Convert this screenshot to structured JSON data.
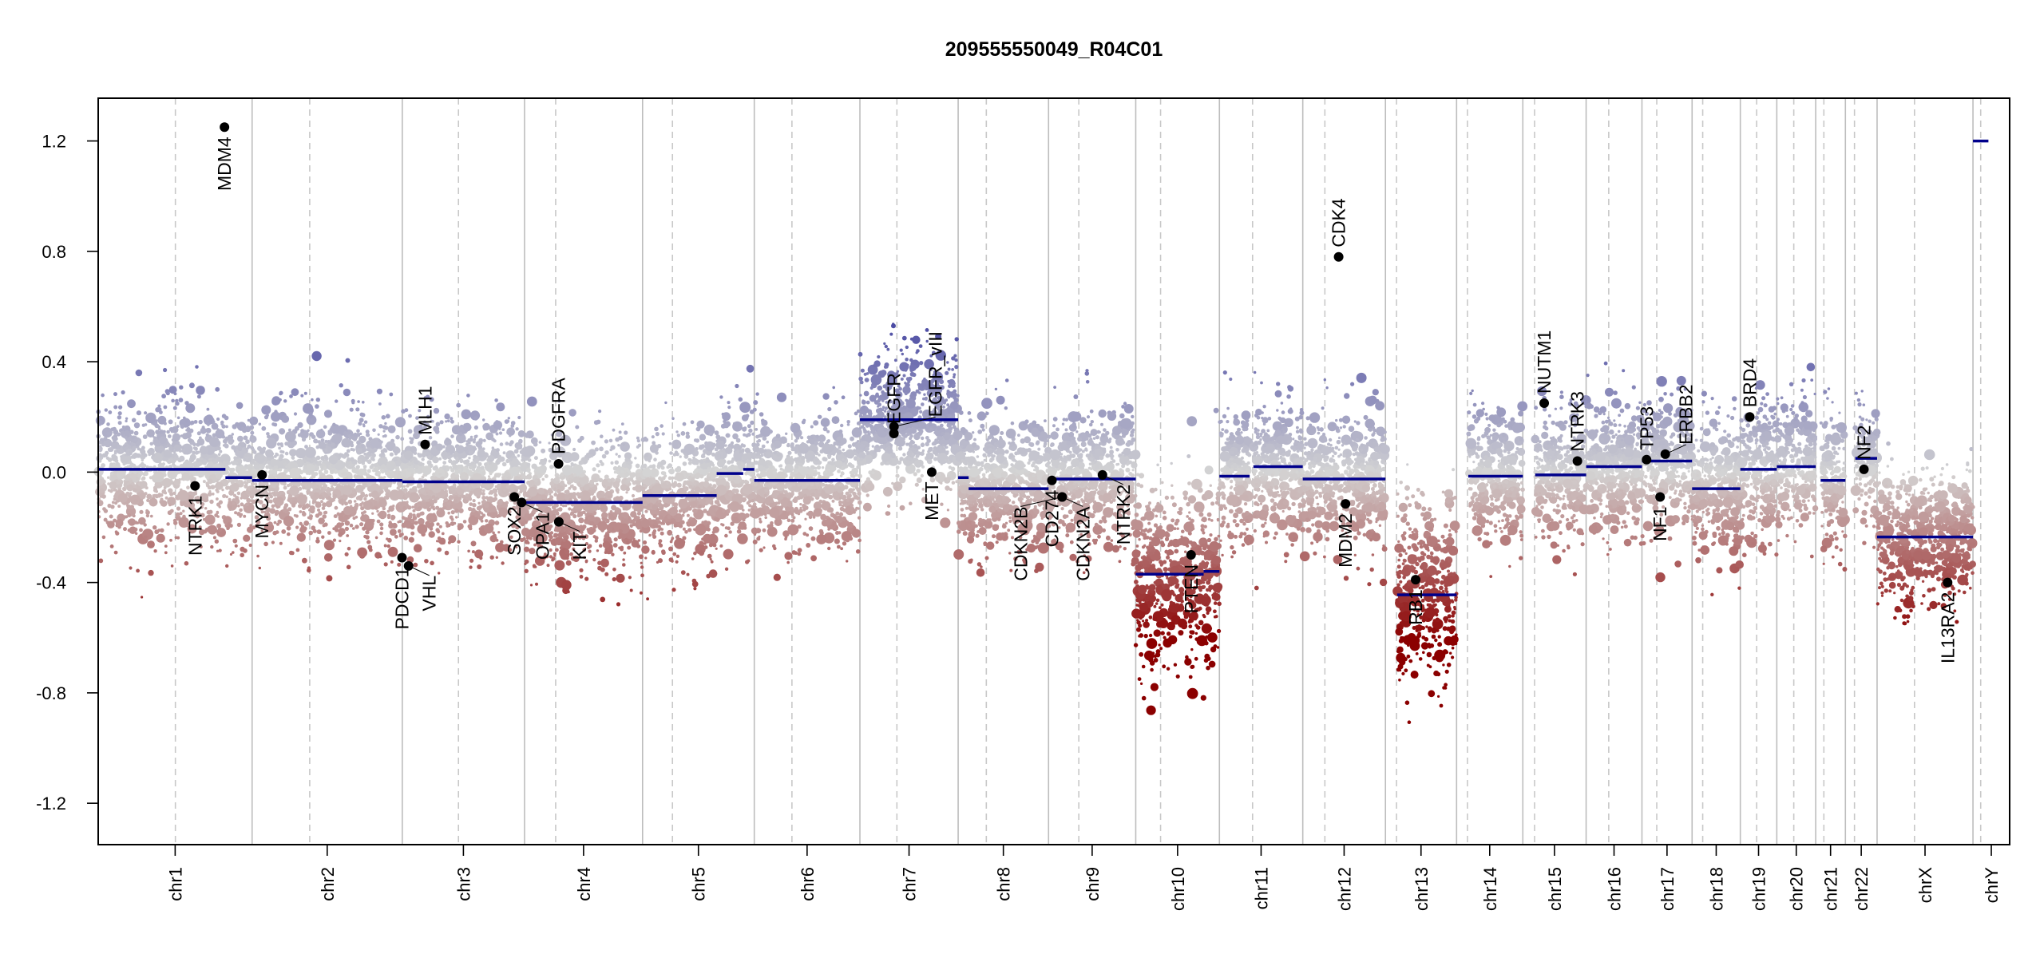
{
  "chart_data": {
    "type": "scatter",
    "title": "209555550049_R04C01",
    "xlabel": "",
    "ylabel": "",
    "ylim": [
      -1.35,
      1.355
    ],
    "y_ticks": [
      "1.2",
      "0.8",
      "0.4",
      "0.0",
      "-0.4",
      "-0.8",
      "-1.2"
    ],
    "y_tick_values": [
      1.2,
      0.8,
      0.4,
      0.0,
      -0.4,
      -0.8,
      -1.2
    ],
    "grid": false,
    "colors": {
      "gain": "#3a3a9e",
      "neutral": "#d4d4d4",
      "loss": "#8b0000",
      "segment": "#00008b",
      "gene": "#000000"
    },
    "chromosomes": [
      {
        "name": "chr1",
        "length_mb": 249.25,
        "centromere_mb": 125.0
      },
      {
        "name": "chr2",
        "length_mb": 243.2,
        "centromere_mb": 93.3
      },
      {
        "name": "chr3",
        "length_mb": 198.0,
        "centromere_mb": 91.0
      },
      {
        "name": "chr4",
        "length_mb": 191.15,
        "centromere_mb": 50.4
      },
      {
        "name": "chr5",
        "length_mb": 180.9,
        "centromere_mb": 48.4
      },
      {
        "name": "chr6",
        "length_mb": 171.1,
        "centromere_mb": 61.0
      },
      {
        "name": "chr7",
        "length_mb": 159.1,
        "centromere_mb": 59.9
      },
      {
        "name": "chr8",
        "length_mb": 146.4,
        "centromere_mb": 45.6
      },
      {
        "name": "chr9",
        "length_mb": 141.2,
        "centromere_mb": 49.0
      },
      {
        "name": "chr10",
        "length_mb": 135.5,
        "centromere_mb": 40.2
      },
      {
        "name": "chr11",
        "length_mb": 135.0,
        "centromere_mb": 53.7
      },
      {
        "name": "chr12",
        "length_mb": 133.9,
        "centromere_mb": 35.8
      },
      {
        "name": "chr13",
        "length_mb": 115.2,
        "centromere_mb": 17.9
      },
      {
        "name": "chr14",
        "length_mb": 107.3,
        "centromere_mb": 17.6
      },
      {
        "name": "chr15",
        "length_mb": 102.5,
        "centromere_mb": 19.0
      },
      {
        "name": "chr16",
        "length_mb": 90.4,
        "centromere_mb": 36.6
      },
      {
        "name": "chr17",
        "length_mb": 81.2,
        "centromere_mb": 24.0
      },
      {
        "name": "chr18",
        "length_mb": 78.1,
        "centromere_mb": 17.2
      },
      {
        "name": "chr19",
        "length_mb": 59.1,
        "centromere_mb": 26.5
      },
      {
        "name": "chr20",
        "length_mb": 63.0,
        "centromere_mb": 27.5
      },
      {
        "name": "chr21",
        "length_mb": 48.1,
        "centromere_mb": 13.2
      },
      {
        "name": "chr22",
        "length_mb": 51.3,
        "centromere_mb": 14.7
      },
      {
        "name": "chrX",
        "length_mb": 155.3,
        "centromere_mb": 60.6
      },
      {
        "name": "chrY",
        "length_mb": 59.4,
        "centromere_mb": 12.5
      }
    ],
    "segments": [
      {
        "chr": "chr1",
        "start": 0,
        "end": 206,
        "value": 0.01
      },
      {
        "chr": "chr1",
        "start": 206,
        "end": 249.25,
        "value": -0.02
      },
      {
        "chr": "chr2",
        "start": 0,
        "end": 243.2,
        "value": -0.03
      },
      {
        "chr": "chr3",
        "start": 0,
        "end": 198.0,
        "value": -0.035
      },
      {
        "chr": "chr4",
        "start": 0,
        "end": 191.15,
        "value": -0.11
      },
      {
        "chr": "chr5",
        "start": 0,
        "end": 120,
        "value": -0.085
      },
      {
        "chr": "chr5",
        "start": 120,
        "end": 163,
        "value": -0.005
      },
      {
        "chr": "chr5",
        "start": 163,
        "end": 180.9,
        "value": 0.01
      },
      {
        "chr": "chr6",
        "start": 0,
        "end": 171.1,
        "value": -0.03
      },
      {
        "chr": "chr7",
        "start": 0,
        "end": 159.1,
        "value": 0.19
      },
      {
        "chr": "chr8",
        "start": 0,
        "end": 17,
        "value": -0.02
      },
      {
        "chr": "chr8",
        "start": 17,
        "end": 146.4,
        "value": -0.06
      },
      {
        "chr": "chr9",
        "start": 0,
        "end": 141.2,
        "value": -0.025
      },
      {
        "chr": "chr10",
        "start": 0,
        "end": 110,
        "value": -0.37
      },
      {
        "chr": "chr10",
        "start": 110,
        "end": 135.5,
        "value": -0.36
      },
      {
        "chr": "chr11",
        "start": 0,
        "end": 49,
        "value": -0.015
      },
      {
        "chr": "chr11",
        "start": 55,
        "end": 135.0,
        "value": 0.02
      },
      {
        "chr": "chr12",
        "start": 0,
        "end": 133.9,
        "value": -0.025
      },
      {
        "chr": "chr13",
        "start": 19,
        "end": 115.2,
        "value": -0.445
      },
      {
        "chr": "chr14",
        "start": 19,
        "end": 107.3,
        "value": -0.015
      },
      {
        "chr": "chr15",
        "start": 20,
        "end": 102.5,
        "value": -0.01
      },
      {
        "chr": "chr16",
        "start": 0,
        "end": 90.4,
        "value": 0.02
      },
      {
        "chr": "chr17",
        "start": 0,
        "end": 81.2,
        "value": 0.04
      },
      {
        "chr": "chr18",
        "start": 0,
        "end": 78.1,
        "value": -0.06
      },
      {
        "chr": "chr19",
        "start": 0,
        "end": 59.1,
        "value": 0.01
      },
      {
        "chr": "chr20",
        "start": 0,
        "end": 63.0,
        "value": 0.02
      },
      {
        "chr": "chr21",
        "start": 8,
        "end": 48.1,
        "value": -0.03
      },
      {
        "chr": "chr22",
        "start": 16,
        "end": 51.3,
        "value": 0.05
      },
      {
        "chr": "chrX",
        "start": 0,
        "end": 155.3,
        "value": -0.235
      },
      {
        "chr": "chrY",
        "start": 0,
        "end": 25,
        "value": 1.2
      }
    ],
    "genes": [
      {
        "name": "NTRK1",
        "chr": "chr1",
        "pos": 156.8,
        "value": -0.05,
        "label": "below"
      },
      {
        "name": "MDM4",
        "chr": "chr1",
        "pos": 204.5,
        "value": 1.25,
        "label": "below"
      },
      {
        "name": "MYCN",
        "chr": "chr2",
        "pos": 16.1,
        "value": -0.01,
        "label": "below"
      },
      {
        "name": "PDCD1",
        "chr": "chr2",
        "pos": 242.8,
        "value": -0.31,
        "label": "below"
      },
      {
        "name": "VHL",
        "chr": "chr3",
        "pos": 10.2,
        "value": -0.34,
        "label": "below"
      },
      {
        "name": "MLH1",
        "chr": "chr3",
        "pos": 37.0,
        "value": 0.1,
        "label": "above"
      },
      {
        "name": "SOX2",
        "chr": "chr3",
        "pos": 181.4,
        "value": -0.09,
        "label": "below"
      },
      {
        "name": "OPA1",
        "chr": "chr3",
        "pos": 193.3,
        "value": -0.11,
        "label": "below"
      },
      {
        "name": "PDGFRA",
        "chr": "chr4",
        "pos": 55.1,
        "value": 0.03,
        "label": "above"
      },
      {
        "name": "KIT",
        "chr": "chr4",
        "pos": 55.5,
        "value": -0.18,
        "label": "below"
      },
      {
        "name": "EGFR",
        "chr": "chr7",
        "pos": 55.1,
        "value": 0.14,
        "label": "above"
      },
      {
        "name": "EGFR_vIII",
        "chr": "chr7",
        "pos": 55.2,
        "value": 0.165,
        "label": "above"
      },
      {
        "name": "MET",
        "chr": "chr7",
        "pos": 116.3,
        "value": 0.0,
        "label": "below"
      },
      {
        "name": "CD274",
        "chr": "chr9",
        "pos": 5.5,
        "value": -0.03,
        "label": "below"
      },
      {
        "name": "CDKN2A",
        "chr": "chr9",
        "pos": 21.97,
        "value": -0.09,
        "label": "below"
      },
      {
        "name": "CDKN2B",
        "chr": "chr9",
        "pos": 22.0,
        "value": -0.09,
        "label": "below"
      },
      {
        "name": "NTRK2",
        "chr": "chr9",
        "pos": 87.3,
        "value": -0.01,
        "label": "below"
      },
      {
        "name": "PTEN",
        "chr": "chr10",
        "pos": 89.6,
        "value": -0.3,
        "label": "below"
      },
      {
        "name": "CDK4",
        "chr": "chr12",
        "pos": 58.1,
        "value": 0.78,
        "label": "above"
      },
      {
        "name": "MDM2",
        "chr": "chr12",
        "pos": 69.2,
        "value": -0.115,
        "label": "below"
      },
      {
        "name": "RB1",
        "chr": "chr13",
        "pos": 48.9,
        "value": -0.39,
        "label": "below"
      },
      {
        "name": "NUTM1",
        "chr": "chr15",
        "pos": 34.6,
        "value": 0.25,
        "label": "above"
      },
      {
        "name": "NTRK3",
        "chr": "chr15",
        "pos": 88.4,
        "value": 0.04,
        "label": "above"
      },
      {
        "name": "TP53",
        "chr": "chr17",
        "pos": 7.5,
        "value": 0.045,
        "label": "above"
      },
      {
        "name": "NF1",
        "chr": "chr17",
        "pos": 29.4,
        "value": -0.09,
        "label": "below"
      },
      {
        "name": "ERBB2",
        "chr": "chr17",
        "pos": 37.8,
        "value": 0.065,
        "label": "above"
      },
      {
        "name": "BRD4",
        "chr": "chr19",
        "pos": 15.3,
        "value": 0.2,
        "label": "above"
      },
      {
        "name": "NF2",
        "chr": "chr22",
        "pos": 30.0,
        "value": 0.01,
        "label": "above"
      },
      {
        "name": "IL13RA2",
        "chr": "chrX",
        "pos": 114.2,
        "value": -0.4,
        "label": "below"
      }
    ]
  }
}
